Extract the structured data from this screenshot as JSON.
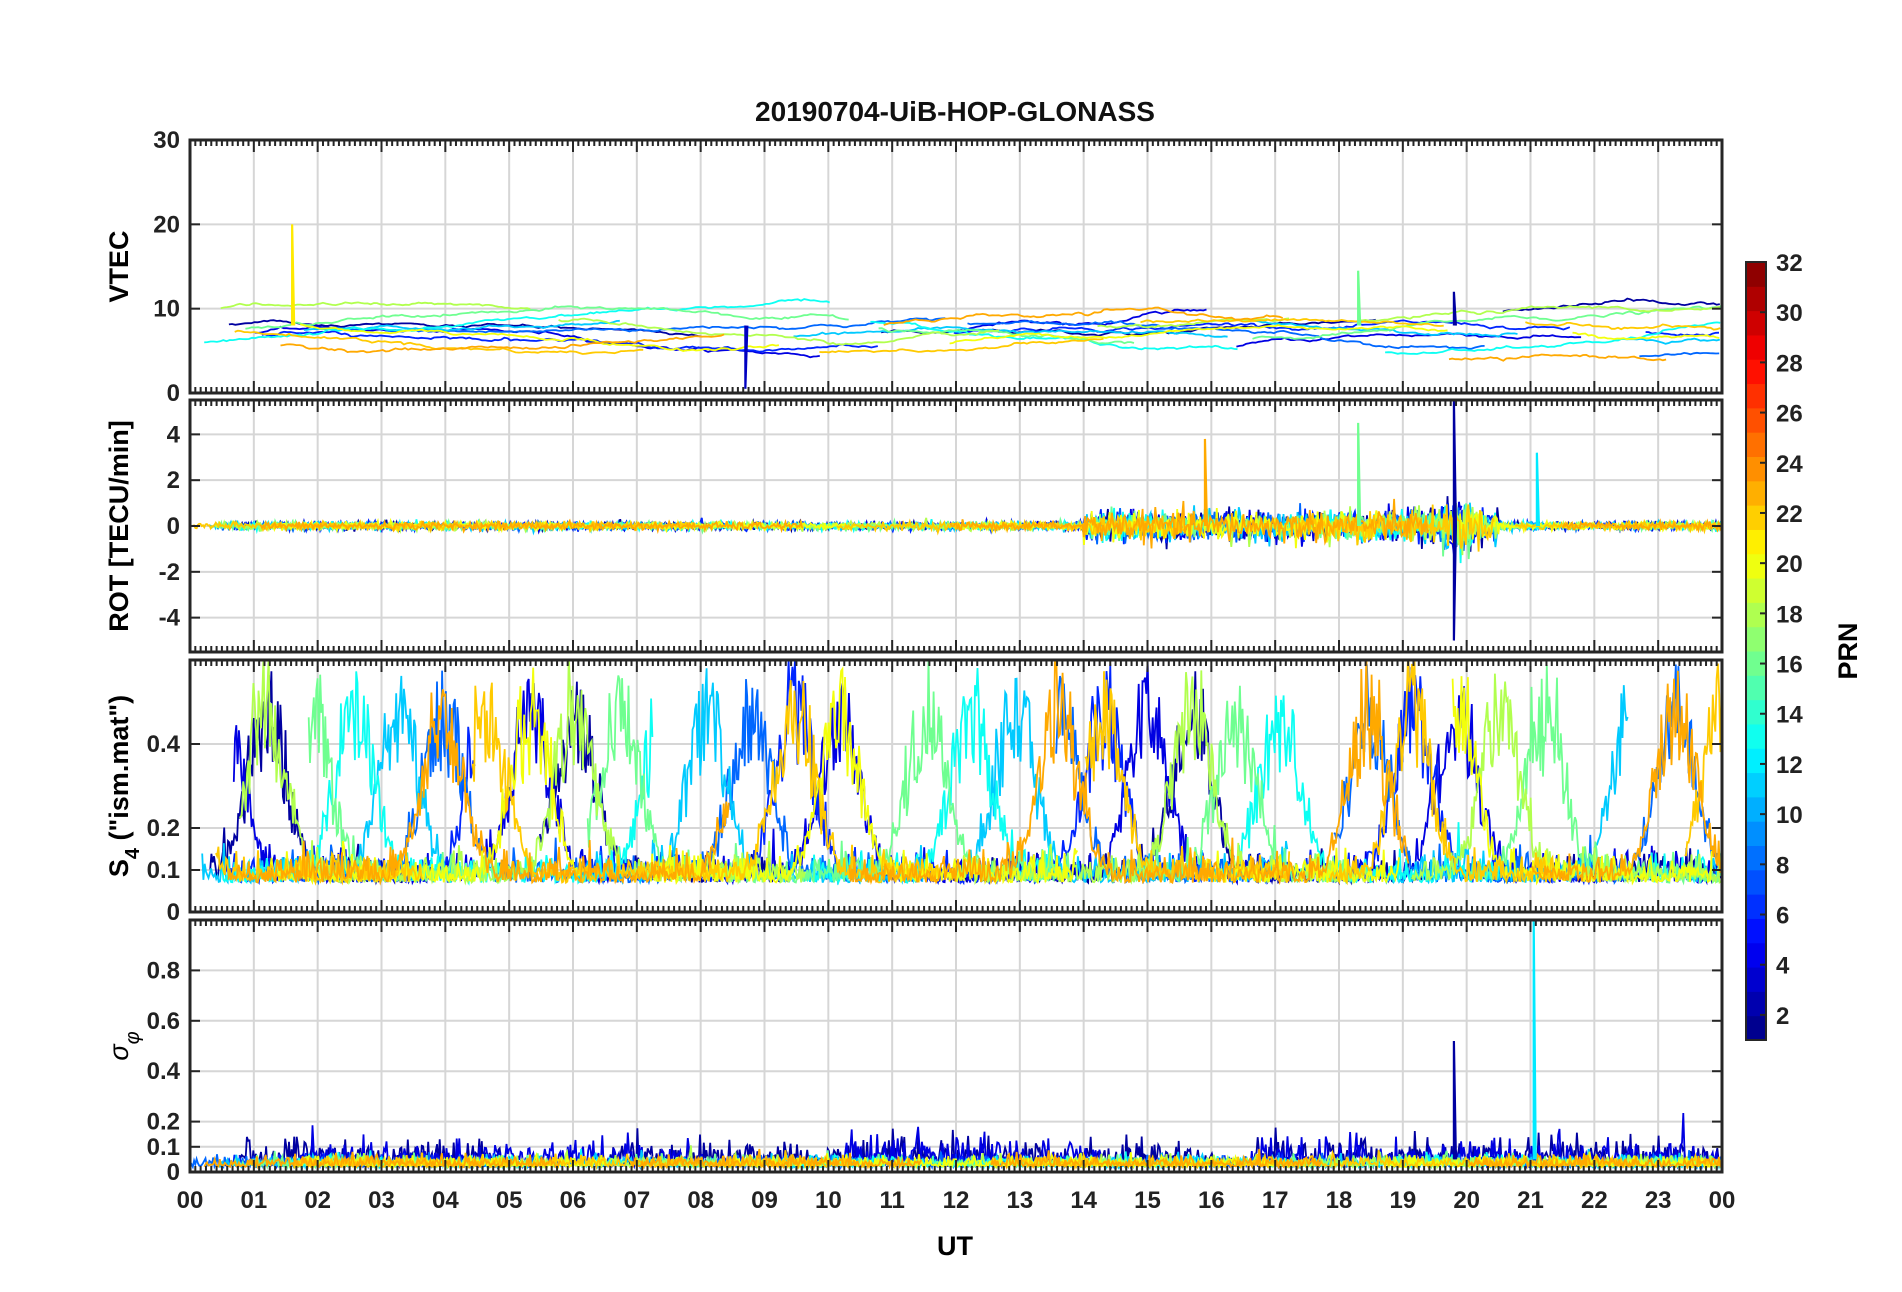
{
  "chart_data": {
    "title": "20190704-UiB-HOP-GLONASS",
    "type": "line",
    "xlabel": "UT",
    "x_ticks": [
      "00",
      "01",
      "02",
      "03",
      "04",
      "05",
      "06",
      "07",
      "08",
      "09",
      "10",
      "11",
      "12",
      "13",
      "14",
      "15",
      "16",
      "17",
      "18",
      "19",
      "20",
      "21",
      "22",
      "23",
      "00"
    ],
    "x_range_hours": [
      0,
      24
    ],
    "panels": [
      {
        "id": "vtec",
        "ylabel": "VTEC",
        "ylim": [
          0,
          30
        ],
        "yticks": [
          0,
          10,
          20,
          30
        ],
        "grid": true,
        "notable_features": [
          {
            "x_hour": 1.6,
            "y": 20,
            "prn": 21,
            "note": "spike"
          },
          {
            "x_hour": 19.8,
            "y": 12,
            "prn": 2,
            "note": "spike"
          },
          {
            "x_hour": 18.3,
            "y": 14.5,
            "prn": 16,
            "note": "isolated segment"
          },
          {
            "x_hour": 8.7,
            "y": 0.5,
            "prn": 3,
            "note": "dip"
          }
        ],
        "typical_range": [
          4,
          11
        ]
      },
      {
        "id": "rot",
        "ylabel": "ROT [TECU/min]",
        "ylim": [
          -5.5,
          5.5
        ],
        "yticks": [
          -4,
          -2,
          0,
          2,
          4
        ],
        "grid": true,
        "notable_features": [
          {
            "x_hour": 19.8,
            "y": 5.5,
            "prn": 2
          },
          {
            "x_hour": 19.8,
            "y": -5.0,
            "prn": 2
          },
          {
            "x_hour": 18.3,
            "y": 4.5,
            "prn": 16
          },
          {
            "x_hour": 15.9,
            "y": 3.8,
            "prn": 23
          },
          {
            "x_hour": 21.1,
            "y": 3.2,
            "prn": 12
          }
        ],
        "active_period_hours": [
          14.0,
          20.5
        ]
      },
      {
        "id": "s4",
        "ylabel_main": "S",
        "ylabel_sub": "4",
        "ylabel_rest": " (\"ism.mat\")",
        "ylim": [
          0,
          0.6
        ],
        "yticks": [
          0,
          0.1,
          0.2,
          0.4
        ],
        "grid": true,
        "baseline_range": [
          0.05,
          0.12
        ],
        "peak_max": 0.6
      },
      {
        "id": "sigma",
        "ylabel_main": "σ",
        "ylabel_sub": "φ",
        "ylim": [
          0,
          1
        ],
        "yticks": [
          0,
          0.1,
          0.2,
          0.4,
          0.6,
          0.8
        ],
        "grid": true,
        "notable_features": [
          {
            "x_hour": 21.05,
            "y": 1.0,
            "prn": 12
          },
          {
            "x_hour": 19.8,
            "y": 0.52,
            "prn": 2
          }
        ],
        "baseline_range": [
          0.01,
          0.12
        ]
      }
    ],
    "colorbar": {
      "label": "PRN",
      "min": 1,
      "max": 32,
      "ticks": [
        2,
        4,
        6,
        8,
        10,
        12,
        14,
        16,
        18,
        20,
        22,
        24,
        26,
        28,
        30,
        32
      ],
      "colormap": "jet"
    },
    "series_prns": [
      2,
      4,
      6,
      8,
      11,
      13,
      16,
      18,
      20,
      22,
      23
    ]
  }
}
